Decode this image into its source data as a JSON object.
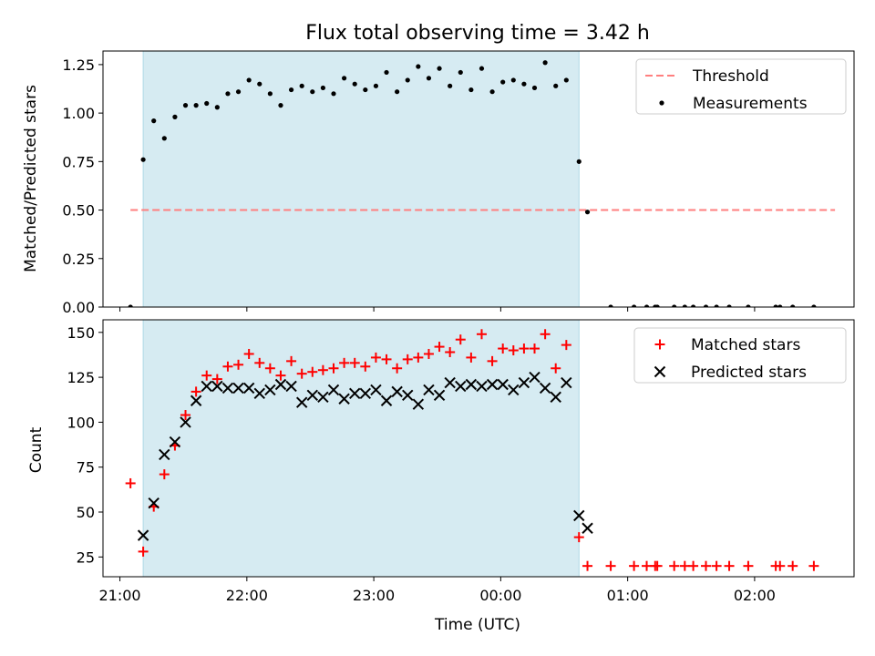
{
  "chart_data": [
    {
      "type": "scatter",
      "title": "Flux total observing time = 3.42 h",
      "ylabel": "Matched/Predicted stars",
      "xlabel": "",
      "ylim": [
        0,
        1.32
      ],
      "y_ticks": [
        0.0,
        0.25,
        0.5,
        0.75,
        1.0,
        1.25
      ],
      "y_tick_labels": [
        "0.00",
        "0.25",
        "0.50",
        "0.75",
        "1.00",
        "1.25"
      ],
      "highlight_range": [
        "21:11",
        "00:37"
      ],
      "legend": {
        "position": "top-right",
        "entries": [
          "Threshold",
          "Measurements"
        ]
      },
      "threshold": {
        "name": "Threshold",
        "value": 0.5,
        "x": [
          "21:05",
          "02:38"
        ],
        "color": "#ff7f7f"
      },
      "series": [
        {
          "name": "Measurements",
          "marker": "dot",
          "color": "#000000",
          "x": [
            "21:05",
            "21:11",
            "21:16",
            "21:21",
            "21:26",
            "21:31",
            "21:36",
            "21:41",
            "21:46",
            "21:51",
            "21:56",
            "22:01",
            "22:06",
            "22:11",
            "22:16",
            "22:21",
            "22:26",
            "22:31",
            "22:36",
            "22:41",
            "22:46",
            "22:51",
            "22:56",
            "23:01",
            "23:06",
            "23:11",
            "23:16",
            "23:21",
            "23:26",
            "23:31",
            "23:36",
            "23:41",
            "23:46",
            "23:51",
            "23:56",
            "00:01",
            "00:06",
            "00:11",
            "00:16",
            "00:21",
            "00:26",
            "00:31",
            "00:37",
            "00:41",
            "00:52",
            "01:03",
            "01:09",
            "01:13",
            "01:14",
            "01:22",
            "01:27",
            "01:31",
            "01:37",
            "01:42",
            "01:48",
            "01:57",
            "02:10",
            "02:12",
            "02:18",
            "02:28"
          ],
          "values": [
            0.0,
            0.76,
            0.96,
            0.87,
            0.98,
            1.04,
            1.04,
            1.05,
            1.03,
            1.1,
            1.11,
            1.17,
            1.15,
            1.1,
            1.04,
            1.12,
            1.14,
            1.11,
            1.13,
            1.1,
            1.18,
            1.15,
            1.12,
            1.14,
            1.21,
            1.11,
            1.17,
            1.24,
            1.18,
            1.23,
            1.14,
            1.21,
            1.12,
            1.23,
            1.11,
            1.16,
            1.17,
            1.15,
            1.13,
            1.26,
            1.14,
            1.17,
            0.75,
            0.49,
            0.0,
            0.0,
            0.0,
            0.0,
            0.0,
            0.0,
            0.0,
            0.0,
            0.0,
            0.0,
            0.0,
            0.0,
            0.0,
            0.0,
            0.0,
            0.0
          ]
        }
      ]
    },
    {
      "type": "scatter",
      "title": "",
      "ylabel": "Count",
      "xlabel": "Time (UTC)",
      "ylim": [
        14,
        157
      ],
      "y_ticks": [
        25,
        50,
        75,
        100,
        125,
        150
      ],
      "y_tick_labels": [
        "25",
        "50",
        "75",
        "100",
        "125",
        "150"
      ],
      "x_ticks": [
        "21:00",
        "22:00",
        "23:00",
        "00:00",
        "01:00",
        "02:00"
      ],
      "x_tick_labels": [
        "21:00",
        "22:00",
        "23:00",
        "00:00",
        "01:00",
        "02:00"
      ],
      "xlim": [
        "20:52",
        "02:47"
      ],
      "highlight_range": [
        "21:11",
        "00:37"
      ],
      "legend": {
        "position": "top-right",
        "entries": [
          "Matched stars",
          "Predicted stars"
        ]
      },
      "series": [
        {
          "name": "Matched stars",
          "marker": "plus",
          "color": "#ff0000",
          "x": [
            "21:05",
            "21:11",
            "21:16",
            "21:21",
            "21:26",
            "21:31",
            "21:36",
            "21:41",
            "21:46",
            "21:51",
            "21:56",
            "22:01",
            "22:06",
            "22:11",
            "22:16",
            "22:21",
            "22:26",
            "22:31",
            "22:36",
            "22:41",
            "22:46",
            "22:51",
            "22:56",
            "23:01",
            "23:06",
            "23:11",
            "23:16",
            "23:21",
            "23:26",
            "23:31",
            "23:36",
            "23:41",
            "23:46",
            "23:51",
            "23:56",
            "00:01",
            "00:06",
            "00:11",
            "00:16",
            "00:21",
            "00:26",
            "00:31",
            "00:37",
            "00:41",
            "00:52",
            "01:03",
            "01:09",
            "01:13",
            "01:14",
            "01:22",
            "01:27",
            "01:31",
            "01:37",
            "01:42",
            "01:48",
            "01:57",
            "02:10",
            "02:12",
            "02:18",
            "02:28"
          ],
          "values": [
            66,
            28,
            53,
            71,
            87,
            104,
            117,
            126,
            124,
            131,
            132,
            138,
            133,
            130,
            126,
            134,
            127,
            128,
            129,
            130,
            133,
            133,
            131,
            136,
            135,
            130,
            135,
            136,
            138,
            142,
            139,
            146,
            136,
            149,
            134,
            141,
            140,
            141,
            141,
            149,
            130,
            143,
            36,
            20,
            20,
            20,
            20,
            20,
            20,
            20,
            20,
            20,
            20,
            20,
            20,
            20,
            20,
            20,
            20,
            20
          ]
        },
        {
          "name": "Predicted stars",
          "marker": "x",
          "color": "#000000",
          "x": [
            "21:11",
            "21:16",
            "21:21",
            "21:26",
            "21:31",
            "21:36",
            "21:41",
            "21:46",
            "21:51",
            "21:56",
            "22:01",
            "22:06",
            "22:11",
            "22:16",
            "22:21",
            "22:26",
            "22:31",
            "22:36",
            "22:41",
            "22:46",
            "22:51",
            "22:56",
            "23:01",
            "23:06",
            "23:11",
            "23:16",
            "23:21",
            "23:26",
            "23:31",
            "23:36",
            "23:41",
            "23:46",
            "23:51",
            "23:56",
            "00:01",
            "00:06",
            "00:11",
            "00:16",
            "00:21",
            "00:26",
            "00:31",
            "00:37",
            "00:41"
          ],
          "values": [
            37,
            55,
            82,
            89,
            100,
            112,
            120,
            120,
            119,
            119,
            119,
            116,
            118,
            121,
            120,
            111,
            115,
            114,
            118,
            113,
            116,
            116,
            118,
            112,
            117,
            115,
            110,
            118,
            115,
            122,
            120,
            121,
            120,
            121,
            121,
            118,
            122,
            125,
            119,
            114,
            122,
            48,
            41
          ]
        }
      ]
    }
  ]
}
